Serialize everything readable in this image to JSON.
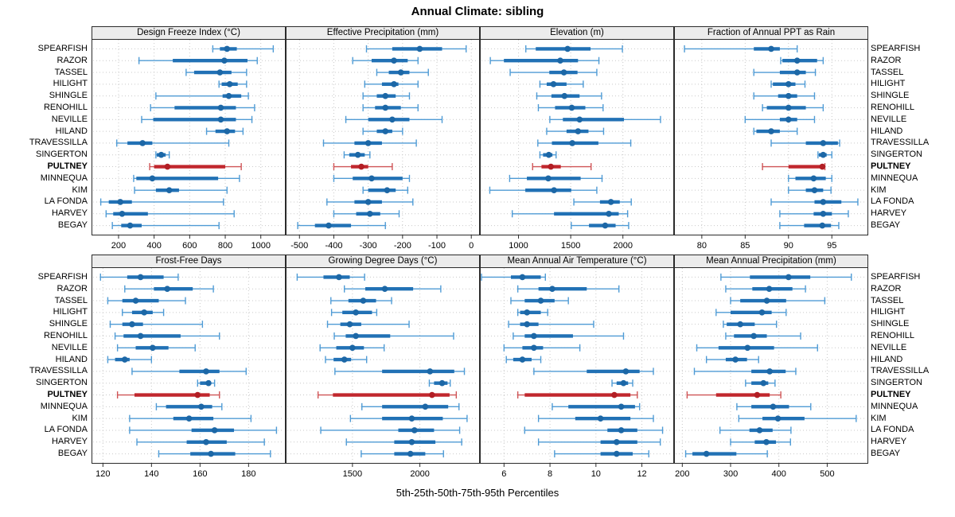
{
  "chart_data": {
    "type": "scatter",
    "subtype": "trellis-percentile-range-dotplot",
    "title": "Annual Climate: sibling",
    "caption": "5th-25th-50th-75th-95th Percentiles",
    "percentiles": [
      5,
      25,
      50,
      75,
      95
    ],
    "legend_position": "none",
    "grid": true,
    "layout": {
      "rows": 2,
      "cols": 4
    },
    "highlight_station": "PULTNEY",
    "colors": {
      "bar": "#2171b5",
      "whisker": "#4f9bd5",
      "median": "#1c67a6",
      "highlight_bar": "#c1272d",
      "highlight_whisker": "#cf5456",
      "highlight_median": "#b21e24",
      "header_bg": "#ececec",
      "gridline": "#c9c9c9",
      "border": "#2b2b2b"
    },
    "stations": [
      "SPEARFISH",
      "RAZOR",
      "TASSEL",
      "HILIGHT",
      "SHINGLE",
      "RENOHILL",
      "NEVILLE",
      "HILAND",
      "TRAVESSILLA",
      "SINGERTON",
      "PULTNEY",
      "MINNEQUA",
      "KIM",
      "LA FONDA",
      "HARVEY",
      "BEGAY"
    ],
    "panels": [
      {
        "title": "Design Freeze Index (°C)",
        "ticks": [
          200,
          400,
          600,
          800,
          1000
        ],
        "xlim": [
          48,
          1140
        ],
        "values": [
          [
            730,
            770,
            810,
            865,
            1070
          ],
          [
            315,
            505,
            795,
            925,
            980
          ],
          [
            580,
            625,
            770,
            835,
            920
          ],
          [
            765,
            780,
            825,
            870,
            920
          ],
          [
            410,
            785,
            820,
            890,
            930
          ],
          [
            380,
            515,
            775,
            860,
            965
          ],
          [
            330,
            395,
            775,
            860,
            950
          ],
          [
            695,
            745,
            810,
            855,
            900
          ],
          [
            190,
            250,
            335,
            390,
            820
          ],
          [
            410,
            415,
            440,
            465,
            485
          ],
          [
            375,
            400,
            475,
            800,
            890
          ],
          [
            285,
            300,
            390,
            760,
            880
          ],
          [
            290,
            410,
            485,
            540,
            810
          ],
          [
            100,
            145,
            210,
            275,
            790
          ],
          [
            130,
            170,
            220,
            365,
            850
          ],
          [
            165,
            215,
            265,
            330,
            765
          ]
        ]
      },
      {
        "title": "Effective Precipitation (mm)",
        "ticks": [
          -500,
          -400,
          -300,
          -200,
          -100,
          0
        ],
        "xlim": [
          -540,
          25
        ],
        "values": [
          [
            -305,
            -230,
            -150,
            -85,
            -15
          ],
          [
            -345,
            -290,
            -225,
            -185,
            -155
          ],
          [
            -275,
            -240,
            -205,
            -180,
            -125
          ],
          [
            -310,
            -260,
            -225,
            -212,
            -155
          ],
          [
            -315,
            -275,
            -250,
            -220,
            -180
          ],
          [
            -315,
            -280,
            -250,
            -205,
            -155
          ],
          [
            -365,
            -300,
            -230,
            -180,
            -85
          ],
          [
            -315,
            -275,
            -250,
            -230,
            -200
          ],
          [
            -430,
            -340,
            -300,
            -260,
            -160
          ],
          [
            -370,
            -355,
            -330,
            -310,
            -295
          ],
          [
            -400,
            -350,
            -320,
            -300,
            -230
          ],
          [
            -400,
            -345,
            -290,
            -200,
            -180
          ],
          [
            -315,
            -300,
            -245,
            -220,
            -185
          ],
          [
            -420,
            -340,
            -300,
            -260,
            -170
          ],
          [
            -400,
            -335,
            -295,
            -265,
            -210
          ],
          [
            -505,
            -455,
            -415,
            -350,
            -250
          ]
        ]
      },
      {
        "title": "Elevation (m)",
        "ticks": [
          1000,
          1500,
          2000
        ],
        "xlim": [
          630,
          2490
        ],
        "values": [
          [
            1070,
            1165,
            1470,
            1690,
            1995
          ],
          [
            730,
            860,
            1400,
            1570,
            1770
          ],
          [
            920,
            1295,
            1435,
            1565,
            1750
          ],
          [
            1205,
            1270,
            1335,
            1460,
            1620
          ],
          [
            1175,
            1315,
            1440,
            1585,
            1795
          ],
          [
            1190,
            1350,
            1510,
            1640,
            1810
          ],
          [
            1300,
            1425,
            1585,
            2010,
            2360
          ],
          [
            1270,
            1460,
            1570,
            1670,
            1815
          ],
          [
            1185,
            1320,
            1515,
            1765,
            2075
          ],
          [
            1205,
            1235,
            1290,
            1325,
            1360
          ],
          [
            1135,
            1220,
            1310,
            1405,
            1695
          ],
          [
            915,
            1080,
            1285,
            1595,
            1800
          ],
          [
            725,
            1065,
            1340,
            1505,
            1750
          ],
          [
            1530,
            1780,
            1885,
            1970,
            2080
          ],
          [
            940,
            1340,
            1865,
            1960,
            2045
          ],
          [
            1505,
            1675,
            1830,
            1930,
            2055
          ]
        ]
      },
      {
        "title": "Fraction of Annual PPT as Rain",
        "ticks": [
          80,
          85,
          90,
          95
        ],
        "xlim": [
          76.8,
          99.2
        ],
        "values": [
          [
            78,
            86,
            88,
            89,
            91
          ],
          [
            89.1,
            89.3,
            91,
            93.3,
            94
          ],
          [
            86,
            89,
            91,
            92,
            93.1
          ],
          [
            88,
            88.2,
            90,
            90.8,
            91.9
          ],
          [
            86,
            88.8,
            90,
            91,
            93
          ],
          [
            87,
            87.5,
            90,
            92,
            94
          ],
          [
            85,
            89,
            90,
            91,
            93
          ],
          [
            86,
            86.3,
            88,
            89,
            91
          ],
          [
            88,
            92,
            94,
            95.7,
            95.9
          ],
          [
            93.4,
            93.5,
            94,
            94.4,
            95
          ],
          [
            87,
            90,
            93.9,
            94,
            94.2
          ],
          [
            90,
            90.8,
            92.9,
            94.3,
            95
          ],
          [
            90,
            92,
            93,
            94,
            94.9
          ],
          [
            88,
            93,
            94,
            96.1,
            98
          ],
          [
            89,
            92.9,
            94,
            95,
            96.9
          ],
          [
            89,
            91.8,
            93.9,
            94.9,
            95.8
          ]
        ]
      },
      {
        "title": "Frost-Free Days",
        "ticks": [
          120,
          140,
          160,
          180
        ],
        "xlim": [
          115.3,
          195.3
        ],
        "values": [
          [
            119,
            130,
            135.5,
            145,
            151
          ],
          [
            129,
            141,
            146.5,
            157,
            165.5
          ],
          [
            122,
            128,
            133.5,
            143,
            154
          ],
          [
            128,
            132,
            137,
            140.5,
            145
          ],
          [
            123,
            128,
            132,
            136.5,
            161
          ],
          [
            125,
            128.5,
            135.5,
            152,
            168
          ],
          [
            126,
            133.5,
            140.5,
            147,
            158
          ],
          [
            122,
            125,
            129,
            131,
            140
          ],
          [
            132,
            151.5,
            162.5,
            168,
            179
          ],
          [
            159,
            160,
            163.5,
            164.5,
            166
          ],
          [
            126,
            133,
            159,
            164,
            168
          ],
          [
            142,
            146,
            160.5,
            165,
            169
          ],
          [
            131,
            149,
            155.5,
            165.5,
            181
          ],
          [
            131,
            156.5,
            166,
            174,
            191.5
          ],
          [
            134,
            154.5,
            162.5,
            171,
            186.5
          ],
          [
            143,
            156,
            164.5,
            174.5,
            189
          ]
        ]
      },
      {
        "title": "Growing Degree Days (°C)",
        "ticks": [
          1500,
          2000
        ],
        "xlim": [
          1005,
          2445
        ],
        "values": [
          [
            1090,
            1285,
            1400,
            1480,
            1590
          ],
          [
            1440,
            1595,
            1740,
            1950,
            2155
          ],
          [
            1340,
            1470,
            1580,
            1675,
            1790
          ],
          [
            1345,
            1425,
            1525,
            1645,
            1680
          ],
          [
            1315,
            1410,
            1480,
            1565,
            1920
          ],
          [
            1365,
            1450,
            1525,
            1780,
            2250
          ],
          [
            1260,
            1380,
            1500,
            1585,
            1735
          ],
          [
            1300,
            1360,
            1440,
            1490,
            1605
          ],
          [
            1370,
            1720,
            2075,
            2255,
            2330
          ],
          [
            2070,
            2105,
            2165,
            2205,
            2225
          ],
          [
            1245,
            1355,
            2090,
            2220,
            2270
          ],
          [
            1570,
            1720,
            2040,
            2210,
            2290
          ],
          [
            1485,
            1720,
            1940,
            2170,
            2350
          ],
          [
            1265,
            1840,
            1960,
            2105,
            2295
          ],
          [
            1455,
            1810,
            1940,
            2115,
            2310
          ],
          [
            1565,
            1810,
            1930,
            2040,
            2175
          ]
        ]
      },
      {
        "title": "Mean Annual Air Temperature (°C)",
        "ticks": [
          6,
          8,
          10,
          12
        ],
        "xlim": [
          4.95,
          13.4
        ],
        "values": [
          [
            5.0,
            6.3,
            6.8,
            7.6,
            7.8
          ],
          [
            6.6,
            7.5,
            8.1,
            9.6,
            11.0
          ],
          [
            6.3,
            6.9,
            7.6,
            8.2,
            8.8
          ],
          [
            6.6,
            6.7,
            7.0,
            7.6,
            7.9
          ],
          [
            6.2,
            6.7,
            7.0,
            7.5,
            9.9
          ],
          [
            6.4,
            6.9,
            7.3,
            9.0,
            11.2
          ],
          [
            6.0,
            6.8,
            7.3,
            7.7,
            9.3
          ],
          [
            6.1,
            6.4,
            6.8,
            7.2,
            7.6
          ],
          [
            7.3,
            9.6,
            11.3,
            11.9,
            12.5
          ],
          [
            10.7,
            10.9,
            11.2,
            11.4,
            11.6
          ],
          [
            6.6,
            6.9,
            10.8,
            11.5,
            11.8
          ],
          [
            8.1,
            8.8,
            11.1,
            11.7,
            11.9
          ],
          [
            7.5,
            9.1,
            10.2,
            11.5,
            12.5
          ],
          [
            6.9,
            10.5,
            11.1,
            11.8,
            12.9
          ],
          [
            7.5,
            10.2,
            10.9,
            11.8,
            12.8
          ],
          [
            8.2,
            10.2,
            10.9,
            11.6,
            12.3
          ]
        ]
      },
      {
        "title": "Mean Annual Precipitation (mm)",
        "ticks": [
          200,
          300,
          400,
          500
        ],
        "xlim": [
          183,
          585
        ],
        "values": [
          [
            280,
            340,
            420,
            465,
            550
          ],
          [
            290,
            345,
            380,
            428,
            455
          ],
          [
            300,
            320,
            375,
            415,
            495
          ],
          [
            270,
            300,
            365,
            385,
            415
          ],
          [
            285,
            292,
            320,
            350,
            395
          ],
          [
            290,
            307,
            348,
            375,
            445
          ],
          [
            230,
            275,
            335,
            390,
            480
          ],
          [
            250,
            290,
            310,
            334,
            358
          ],
          [
            225,
            343,
            381,
            414,
            435
          ],
          [
            331,
            343,
            368,
            378,
            392
          ],
          [
            210,
            270,
            355,
            381,
            404
          ],
          [
            313,
            343,
            388,
            421,
            466
          ],
          [
            317,
            366,
            398,
            453,
            560
          ],
          [
            278,
            339,
            360,
            387,
            425
          ],
          [
            300,
            350,
            374,
            394,
            424
          ],
          [
            207,
            221,
            250,
            312,
            376
          ]
        ]
      }
    ]
  }
}
